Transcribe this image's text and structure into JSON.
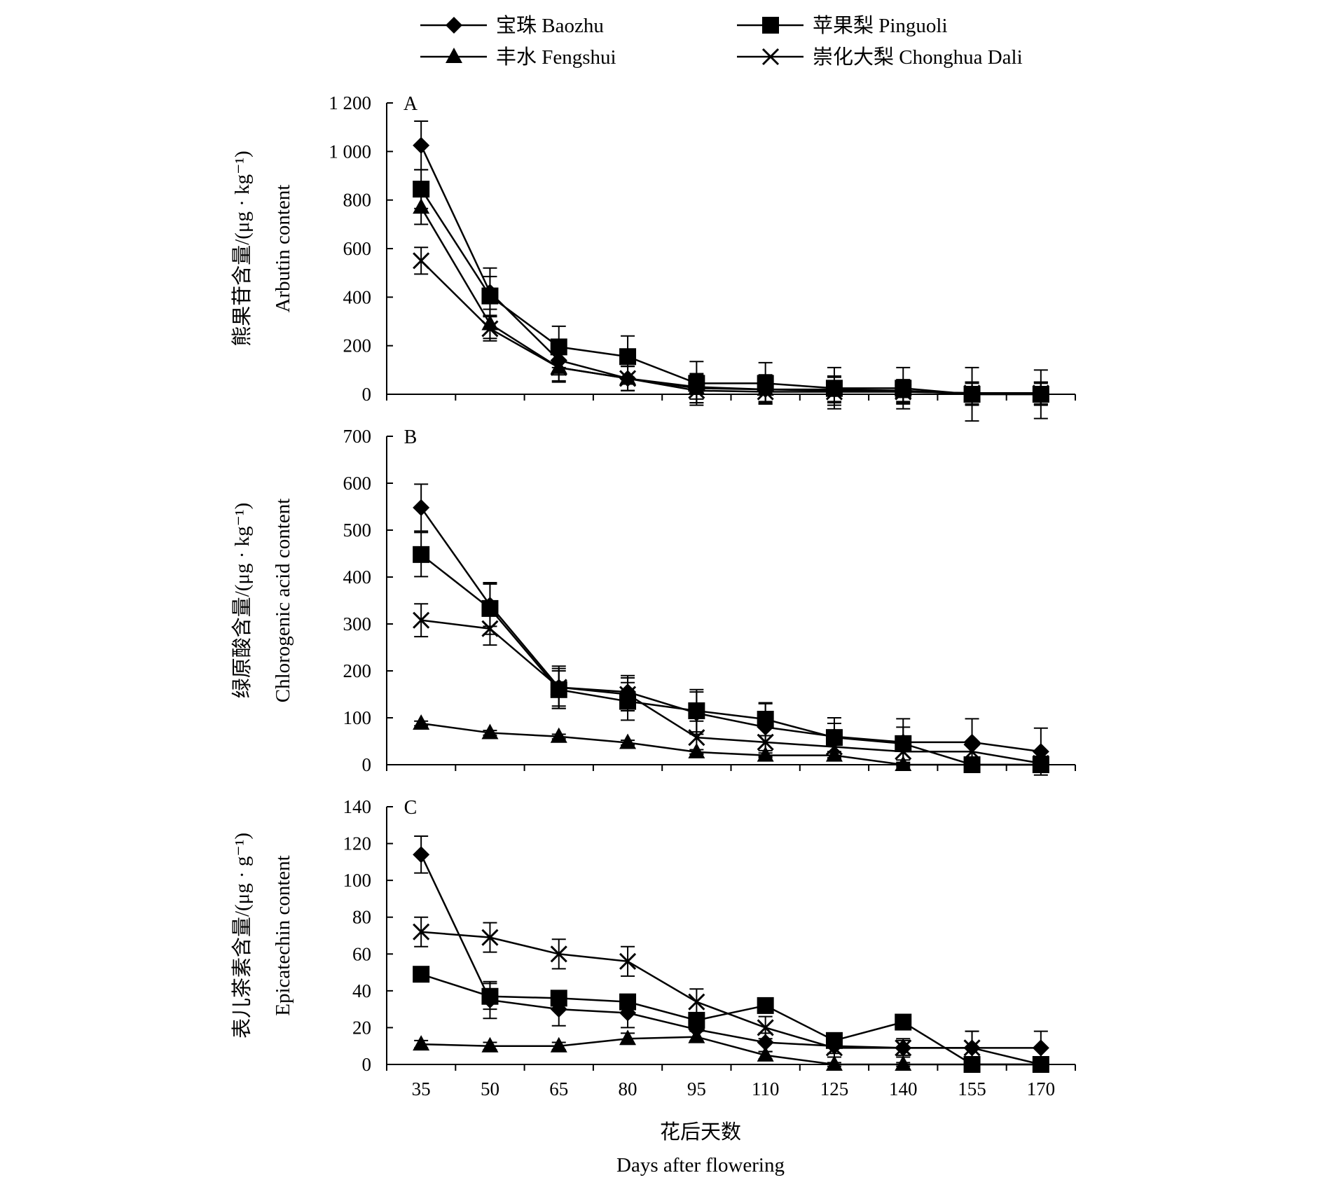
{
  "legend": [
    {
      "label": "宝珠 Baozhu",
      "marker": "diamond"
    },
    {
      "label": "苹果梨 Pinguoli",
      "marker": "square"
    },
    {
      "label": "丰水 Fengshui",
      "marker": "triangle"
    },
    {
      "label": "崇化大梨 Chonghua Dali",
      "marker": "cross"
    }
  ],
  "x_axis": {
    "label_cn": "花后天数",
    "label_en": "Days after flowering"
  },
  "chart_data": [
    {
      "type": "line",
      "panel": "A",
      "ylabel_cn": "熊果苷含量/(μg · kg⁻¹)",
      "ylabel_en": "Arbutin content",
      "x": [
        35,
        50,
        65,
        80,
        95,
        110,
        125,
        140,
        155,
        170
      ],
      "ylim": [
        0,
        1200
      ],
      "yticks": [
        0,
        200,
        400,
        600,
        800,
        1000,
        1200
      ],
      "ytick_labels": [
        "0",
        "200",
        "400",
        "600",
        "800",
        "1 000",
        "1 200"
      ],
      "series": [
        {
          "name": "宝珠 Baozhu",
          "marker": "diamond",
          "values": [
            1025,
            420,
            140,
            65,
            30,
            20,
            20,
            15,
            0,
            0
          ],
          "errors": [
            100,
            100,
            60,
            50,
            50,
            50,
            50,
            45,
            45,
            45
          ]
        },
        {
          "name": "苹果梨 Pinguoli",
          "marker": "square",
          "values": [
            845,
            405,
            195,
            155,
            45,
            45,
            25,
            25,
            0,
            0
          ],
          "errors": [
            80,
            80,
            85,
            85,
            90,
            85,
            85,
            85,
            110,
            100
          ]
        },
        {
          "name": "丰水 Fengshui",
          "marker": "triangle",
          "values": [
            770,
            290,
            110,
            65,
            25,
            20,
            15,
            10,
            5,
            5
          ],
          "errors": [
            70,
            60,
            60,
            50,
            60,
            60,
            60,
            50,
            45,
            45
          ]
        },
        {
          "name": "崇化大梨 Chonghua Dali",
          "marker": "cross",
          "values": [
            550,
            270,
            110,
            65,
            15,
            10,
            10,
            10,
            5,
            5
          ],
          "errors": [
            55,
            50,
            55,
            50,
            50,
            45,
            45,
            45,
            45,
            45
          ]
        }
      ]
    },
    {
      "type": "line",
      "panel": "B",
      "ylabel_cn": "绿原酸含量/(μg · kg⁻¹)",
      "ylabel_en": "Chlorogenic acid content",
      "x": [
        35,
        50,
        65,
        80,
        95,
        110,
        125,
        140,
        155,
        170
      ],
      "ylim": [
        0,
        700
      ],
      "yticks": [
        0,
        100,
        200,
        300,
        400,
        500,
        600,
        700
      ],
      "ytick_labels": [
        "0",
        "100",
        "200",
        "300",
        "400",
        "500",
        "600",
        "700"
      ],
      "series": [
        {
          "name": "宝珠 Baozhu",
          "marker": "diamond",
          "values": [
            548,
            340,
            165,
            155,
            110,
            80,
            60,
            48,
            48,
            28
          ],
          "errors": [
            50,
            45,
            45,
            35,
            45,
            50,
            40,
            50,
            50,
            50
          ]
        },
        {
          "name": "苹果梨 Pinguoli",
          "marker": "square",
          "values": [
            448,
            333,
            160,
            135,
            115,
            97,
            58,
            45,
            0,
            0
          ],
          "errors": [
            47,
            55,
            40,
            40,
            45,
            35,
            30,
            35,
            15,
            15
          ]
        },
        {
          "name": "丰水 Fengshui",
          "marker": "triangle",
          "values": [
            88,
            68,
            60,
            47,
            27,
            20,
            20,
            0,
            0,
            0
          ],
          "errors": [
            5,
            5,
            5,
            5,
            5,
            5,
            5,
            5,
            5,
            5
          ]
        },
        {
          "name": "崇化大梨 Chonghua Dali",
          "marker": "cross",
          "values": [
            308,
            290,
            165,
            150,
            58,
            48,
            38,
            28,
            28,
            3
          ],
          "errors": [
            35,
            35,
            40,
            35,
            35,
            30,
            25,
            25,
            20,
            15
          ]
        }
      ]
    },
    {
      "type": "line",
      "panel": "C",
      "ylabel_cn": "表儿茶素含量/(μg · g⁻¹)",
      "ylabel_en": "Epicatechin content",
      "x": [
        35,
        50,
        65,
        80,
        95,
        110,
        125,
        140,
        155,
        170
      ],
      "ylim": [
        0,
        140
      ],
      "yticks": [
        0,
        20,
        40,
        60,
        80,
        100,
        120,
        140
      ],
      "ytick_labels": [
        "0",
        "20",
        "40",
        "60",
        "80",
        "100",
        "120",
        "140"
      ],
      "series": [
        {
          "name": "宝珠 Baozhu",
          "marker": "diamond",
          "values": [
            114,
            35,
            30,
            28,
            19,
            12,
            10,
            9,
            9,
            9
          ],
          "errors": [
            10,
            10,
            9,
            8,
            6,
            5,
            4,
            4,
            9,
            9
          ]
        },
        {
          "name": "苹果梨 Pinguoli",
          "marker": "square",
          "values": [
            49,
            37,
            36,
            34,
            24,
            32,
            13,
            23,
            0,
            0
          ],
          "errors": [
            3,
            7,
            3,
            3,
            3,
            3,
            2,
            3,
            1,
            1
          ]
        },
        {
          "name": "丰水 Fengshui",
          "marker": "triangle",
          "values": [
            11,
            10,
            10,
            14,
            15,
            5,
            0,
            0,
            0,
            0
          ],
          "errors": [
            2,
            2,
            2,
            3,
            3,
            2,
            1,
            1,
            1,
            1
          ]
        },
        {
          "name": "崇化大梨 Chonghua Dali",
          "marker": "cross",
          "values": [
            72,
            69,
            60,
            56,
            34,
            20,
            9,
            9,
            9,
            0
          ],
          "errors": [
            8,
            8,
            8,
            8,
            7,
            6,
            5,
            5,
            9,
            2
          ]
        }
      ]
    }
  ]
}
